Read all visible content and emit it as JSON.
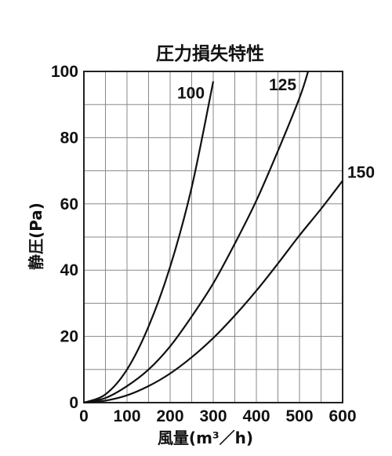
{
  "chart_data": {
    "type": "line",
    "title": "圧力損失特性",
    "xlabel": "風量(m³／h)",
    "ylabel": "静圧(Pa)",
    "xlim": [
      0,
      600
    ],
    "ylim": [
      0,
      100
    ],
    "x_ticks": [
      "0",
      "100",
      "200",
      "300",
      "400",
      "500",
      "600"
    ],
    "y_ticks": [
      "0",
      "20",
      "40",
      "60",
      "80",
      "100"
    ],
    "grid": true,
    "series": [
      {
        "name": "100",
        "x": [
          0,
          50,
          100,
          150,
          200,
          250,
          300
        ],
        "y": [
          0,
          2.5,
          10,
          23,
          41,
          65,
          97
        ]
      },
      {
        "name": "125",
        "x": [
          0,
          50,
          100,
          150,
          200,
          250,
          300,
          350,
          400,
          450,
          500,
          520
        ],
        "y": [
          0,
          1.4,
          5,
          10,
          17,
          26,
          36,
          48,
          61,
          76,
          92,
          100
        ]
      },
      {
        "name": "150",
        "x": [
          0,
          50,
          100,
          150,
          200,
          250,
          300,
          350,
          400,
          450,
          500,
          550,
          600
        ],
        "y": [
          0,
          0.6,
          2.2,
          5,
          8.8,
          13.7,
          19.5,
          26.3,
          33.8,
          42,
          50.5,
          58.5,
          67
        ]
      }
    ]
  }
}
